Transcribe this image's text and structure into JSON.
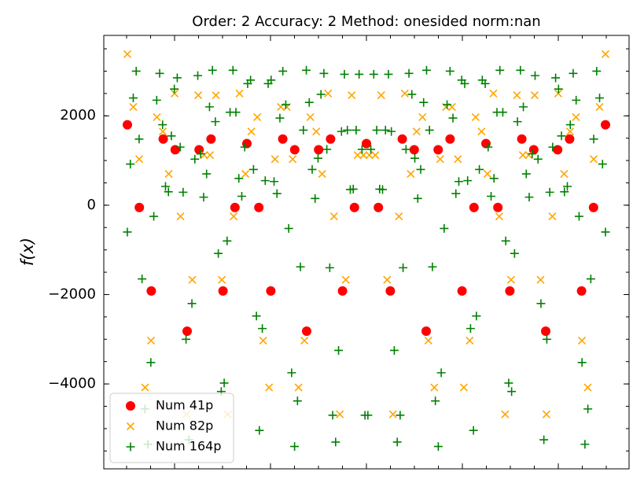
{
  "chart_data": {
    "type": "scatter",
    "title": "Order: 2 Accuracy: 2 Method: onesided norm:nan",
    "y_label": "f(x)",
    "ylim": [
      -5900,
      3800
    ],
    "yticks": [
      {
        "value": -4000,
        "label": "−4000"
      },
      {
        "value": -2000,
        "label": "−2000"
      },
      0,
      2000
    ],
    "legend": "lower left",
    "series": [
      {
        "name": "Num 41p",
        "color": "#ff0000",
        "marker": "o",
        "values": [
          1800,
          -50,
          -1920,
          1480,
          1240,
          -2820,
          1240,
          1480,
          -1920,
          -50,
          1380,
          -50,
          -1920,
          1480,
          1240,
          -2820,
          1240,
          1480,
          -1920,
          -50,
          1380,
          -50,
          -1920,
          1480,
          1240,
          -2820,
          1240,
          1480,
          -1920,
          -50,
          1380,
          -50,
          -1920,
          1480,
          1240,
          -2820,
          1240,
          1480,
          -1920,
          -50,
          1800
        ]
      },
      {
        "name": "Num 82p",
        "color": "#ffa500",
        "marker": "x",
        "values": [
          3380,
          2200,
          1030,
          -4080,
          -3030,
          1970,
          1650,
          700,
          2500,
          -250,
          -4680,
          -1670,
          2460,
          1120,
          1120,
          2460,
          -1670,
          -4680,
          -250,
          2500,
          700,
          1650,
          1970,
          -3030,
          -4080,
          1030,
          2200,
          2200,
          1030,
          -4080,
          -3030,
          1970,
          1650,
          700,
          2500,
          -250,
          -4680,
          -1670,
          2460,
          1120,
          1120,
          1120,
          1120,
          2460,
          -1670,
          -4680,
          -250,
          2500,
          700,
          1650,
          1970,
          -3030,
          -4080,
          1030,
          2200,
          2200,
          1030,
          -4080,
          -3030,
          1970,
          1650,
          700,
          2500,
          -250,
          -4680,
          -1670,
          2460,
          1120,
          1120,
          2460,
          -1670,
          -4680,
          -250,
          2500,
          700,
          1650,
          1970,
          -3030,
          -4080,
          1030,
          2200,
          3380
        ]
      },
      {
        "name": "Num 164p",
        "color": "#008000",
        "marker": "+",
        "values": [
          -600,
          920,
          2400,
          3000,
          1480,
          -1650,
          -4560,
          -5350,
          -3520,
          -250,
          2350,
          2950,
          1800,
          420,
          300,
          1550,
          2600,
          2850,
          1300,
          290,
          -3000,
          -5250,
          -2200,
          1030,
          2900,
          1150,
          180,
          700,
          2200,
          3020,
          1870,
          -1080,
          -4170,
          -3980,
          -800,
          2080,
          3020,
          2080,
          600,
          200,
          1300,
          2720,
          2800,
          800,
          -2480,
          -5040,
          -2760,
          550,
          2720,
          2800,
          530,
          260,
          1950,
          3000,
          2250,
          -520,
          -3750,
          -5400,
          -4380,
          -1380,
          1680,
          3020,
          2300,
          800,
          150,
          1050,
          2480,
          2950,
          1250,
          -1400,
          -4700,
          -5300,
          -3250,
          1650,
          2930,
          1680,
          350,
          360,
          1680,
          2930,
          1250,
          -4700,
          -4700,
          1250,
          2930,
          1680,
          360,
          350,
          1680,
          2930,
          1650,
          -3250,
          -5300,
          -4700,
          -1400,
          1250,
          2950,
          2480,
          1050,
          150,
          800,
          2300,
          3020,
          1680,
          -1380,
          -4380,
          -5400,
          -3750,
          -520,
          2250,
          3000,
          1950,
          260,
          530,
          2800,
          2720,
          550,
          -2760,
          -5040,
          -2480,
          800,
          2800,
          2720,
          1300,
          200,
          600,
          2080,
          3020,
          2080,
          -800,
          -3980,
          -4170,
          -1080,
          1870,
          3020,
          2200,
          700,
          180,
          1150,
          2900,
          1030,
          -2200,
          -5250,
          -3000,
          290,
          1300,
          2850,
          2600,
          1550,
          300,
          420,
          1800,
          2950,
          2350,
          -250,
          -3520,
          -5350,
          -4560,
          -1650,
          1480,
          3000,
          2400,
          920,
          -600
        ]
      }
    ]
  }
}
